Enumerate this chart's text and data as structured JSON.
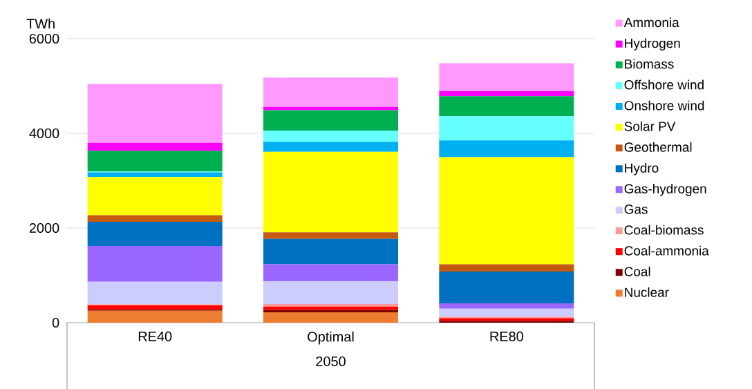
{
  "chart_data": {
    "type": "bar",
    "stacked": true,
    "ylabel": "TWh",
    "xlabel": "2050",
    "categories": [
      "RE40",
      "Optimal",
      "RE80"
    ],
    "ylim": [
      0,
      6000
    ],
    "yticks": [
      0,
      2000,
      4000,
      6000
    ],
    "grid": "y",
    "legend": "right",
    "series": [
      {
        "name": "Nuclear",
        "color": "#ed7d31",
        "values": [
          250,
          220,
          0
        ]
      },
      {
        "name": "Coal",
        "color": "#800000",
        "values": [
          25,
          50,
          40
        ]
      },
      {
        "name": "Coal-ammonia",
        "color": "#ff0000",
        "values": [
          90,
          70,
          55
        ]
      },
      {
        "name": "Coal-biomass",
        "color": "#ff9999",
        "values": [
          20,
          55,
          30
        ]
      },
      {
        "name": "Gas",
        "color": "#ccccff",
        "values": [
          480,
          480,
          170
        ]
      },
      {
        "name": "Gas-hydrogen",
        "color": "#9966ff",
        "values": [
          755,
          360,
          115
        ]
      },
      {
        "name": "Hydro",
        "color": "#0070c0",
        "values": [
          510,
          535,
          670
        ]
      },
      {
        "name": "Geothermal",
        "color": "#c55a11",
        "values": [
          140,
          140,
          155
        ]
      },
      {
        "name": "Solar PV",
        "color": "#ffff00",
        "values": [
          805,
          1700,
          2260
        ]
      },
      {
        "name": "Onshore wind",
        "color": "#00b0f0",
        "values": [
          100,
          210,
          355
        ]
      },
      {
        "name": "Offshore wind",
        "color": "#66ffff",
        "values": [
          20,
          240,
          510
        ]
      },
      {
        "name": "Biomass",
        "color": "#00b050",
        "values": [
          435,
          430,
          425
        ]
      },
      {
        "name": "Hydrogen",
        "color": "#ff00ff",
        "values": [
          170,
          70,
          105
        ]
      },
      {
        "name": "Ammonia",
        "color": "#ff99ff",
        "values": [
          1245,
          620,
          590
        ]
      }
    ]
  }
}
